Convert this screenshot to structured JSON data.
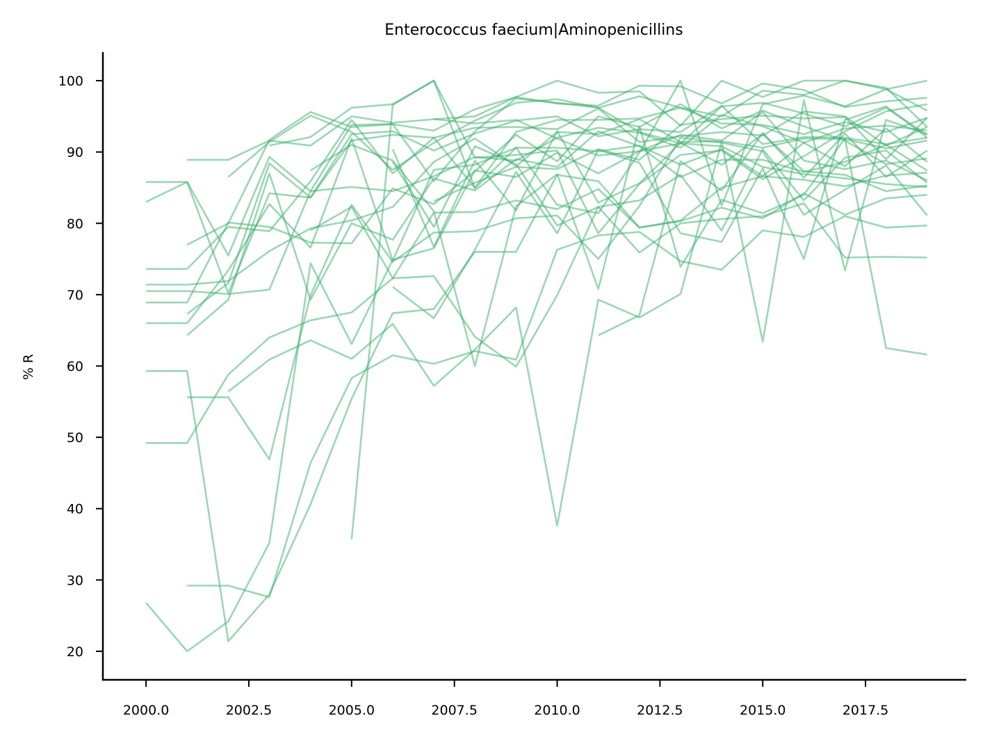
{
  "chart_data": {
    "type": "line",
    "title": "Enterococcus faecium|Aminopenicillins",
    "xlabel": "",
    "ylabel": "% R",
    "xlim": [
      1998.95,
      2019.95
    ],
    "ylim": [
      16,
      104
    ],
    "xticks": [
      2000.0,
      2002.5,
      2005.0,
      2007.5,
      2010.0,
      2012.5,
      2015.0,
      2017.5
    ],
    "xtick_labels": [
      "2000.0",
      "2002.5",
      "2005.0",
      "2007.5",
      "2010.0",
      "2012.5",
      "2015.0",
      "2017.5"
    ],
    "yticks": [
      20,
      30,
      40,
      50,
      60,
      70,
      80,
      90,
      100
    ],
    "ytick_labels": [
      "20",
      "30",
      "40",
      "50",
      "60",
      "70",
      "80",
      "90",
      "100"
    ],
    "grid": false,
    "legend": "none",
    "line_color": "#3aae6a",
    "series": [
      {
        "x": [
          2000,
          2001,
          2002,
          2003,
          2004,
          2005,
          2006,
          2007,
          2008,
          2009,
          2010,
          2011,
          2012,
          2013,
          2014,
          2015,
          2016,
          2017,
          2018,
          2019
        ],
        "values": [
          85.8,
          85.8,
          75.5,
          89.3,
          84.5,
          93.8,
          93.9,
          85.9,
          92.9,
          97.5,
          96.9,
          96.2,
          92.8,
          91.2,
          96.4,
          96.9,
          95.4,
          93.6,
          96.2,
          92.4
        ]
      },
      {
        "x": [
          2000,
          2001,
          2002,
          2003,
          2004,
          2005,
          2006,
          2007,
          2008,
          2009,
          2010,
          2011,
          2012,
          2013,
          2014,
          2015,
          2016,
          2017,
          2018,
          2019
        ],
        "values": [
          83.0,
          85.8,
          70.2,
          84.2,
          83.6,
          92.5,
          92.9,
          90.2,
          92.6,
          94.4,
          95.0,
          92.2,
          93.2,
          92.8,
          96.5,
          91.1,
          92.1,
          92.0,
          91.1,
          92.0
        ]
      },
      {
        "x": [
          2000,
          2001,
          2002,
          2003,
          2004,
          2005,
          2006,
          2007,
          2008,
          2009,
          2010,
          2011,
          2012,
          2013,
          2014,
          2015,
          2016,
          2017,
          2018,
          2019
        ],
        "values": [
          73.6,
          73.6,
          79.5,
          78.9,
          85.9,
          94.5,
          87.0,
          92.0,
          93.4,
          93.5,
          93.2,
          96.1,
          91.4,
          92.2,
          92.8,
          92.3,
          95.7,
          95.0,
          90.9,
          93.5
        ]
      },
      {
        "x": [
          2000,
          2001,
          2002,
          2003,
          2004,
          2005,
          2006,
          2007,
          2008,
          2009,
          2010,
          2011,
          2012,
          2013,
          2014,
          2015,
          2016,
          2017,
          2018,
          2019
        ],
        "values": [
          71.4,
          71.4,
          71.9,
          76.1,
          79.3,
          80.4,
          82.3,
          88.6,
          91.9,
          88.0,
          92.8,
          92.5,
          94.6,
          91.4,
          91.5,
          90.6,
          91.9,
          91.8,
          90.5,
          91.6
        ]
      },
      {
        "x": [
          2000,
          2001,
          2002,
          2003,
          2004,
          2005,
          2006,
          2007,
          2008,
          2009,
          2010,
          2011,
          2012,
          2013,
          2014,
          2015,
          2016,
          2017,
          2018,
          2019
        ],
        "values": [
          70.5,
          70.5,
          70.1,
          70.7,
          84.5,
          85.1,
          84.5,
          86.6,
          89.3,
          88.8,
          92.0,
          93.4,
          92.7,
          90.6,
          95.2,
          93.6,
          91.3,
          93.3,
          93.7,
          93.0
        ]
      },
      {
        "x": [
          2000,
          2001,
          2002,
          2003,
          2004,
          2005,
          2006,
          2007,
          2008,
          2009,
          2010,
          2011,
          2012,
          2013,
          2014,
          2015,
          2016,
          2017,
          2018,
          2019
        ],
        "values": [
          68.9,
          68.9,
          80.1,
          79.5,
          77.3,
          77.2,
          84.9,
          82.7,
          87.3,
          92.4,
          88.7,
          95.0,
          93.5,
          96.7,
          93.3,
          95.8,
          93.6,
          91.6,
          88.3,
          89.1
        ]
      },
      {
        "x": [
          2000,
          2001,
          2002,
          2003,
          2004,
          2005,
          2006,
          2007,
          2008,
          2009,
          2010,
          2011,
          2012,
          2013,
          2014,
          2015,
          2016,
          2017,
          2018,
          2019
        ],
        "values": [
          66.0,
          66.0,
          73.4,
          82.7,
          76.6,
          91.9,
          74.8,
          87.5,
          88.2,
          90.6,
          90.6,
          90.1,
          90.9,
          88.2,
          90.4,
          86.6,
          91.3,
          88.0,
          93.3,
          88.6
        ]
      },
      {
        "x": [
          2000,
          2001,
          2002,
          2003,
          2004,
          2005,
          2006,
          2007,
          2008,
          2009,
          2010,
          2011,
          2012,
          2013,
          2014,
          2015,
          2016,
          2017,
          2018,
          2019
        ],
        "values": [
          59.3,
          59.3,
          21.4,
          28.0,
          40.6,
          55.4,
          67.4,
          68.0,
          76.0,
          76.0,
          86.8,
          85.9,
          79.4,
          80.3,
          82.2,
          80.7,
          84.2,
          81.2,
          83.5,
          84.0
        ]
      },
      {
        "x": [
          2000,
          2001,
          2002,
          2003,
          2004,
          2005,
          2006,
          2007,
          2008,
          2009,
          2010,
          2011,
          2012,
          2013,
          2014,
          2015,
          2016,
          2017,
          2018,
          2019
        ],
        "values": [
          49.2,
          49.2,
          58.8,
          64.0,
          66.4,
          67.5,
          72.3,
          81.5,
          81.6,
          83.2,
          82.0,
          84.8,
          79.4,
          80.4,
          85.0,
          86.6,
          86.1,
          85.2,
          86.7,
          87.1
        ]
      },
      {
        "x": [
          2000,
          2001,
          2002,
          2003,
          2004,
          2005,
          2006,
          2007,
          2008,
          2009,
          2010,
          2011,
          2012,
          2013,
          2014,
          2015,
          2016,
          2017,
          2018,
          2019
        ],
        "values": [
          26.8,
          20.0,
          24.2,
          35.2,
          74.4,
          63.1,
          74.9,
          76.5,
          87.4,
          86.5,
          89.9,
          87.0,
          90.1,
          91.2,
          90.8,
          87.9,
          86.9,
          86.3,
          85.5,
          85.1
        ]
      },
      {
        "x": [
          2001,
          2002,
          2003,
          2004,
          2005,
          2006,
          2007,
          2008,
          2009,
          2010,
          2011,
          2012,
          2013,
          2014,
          2015,
          2016,
          2017,
          2018,
          2019
        ],
        "values": [
          88.9,
          88.9,
          91.6,
          90.9,
          95.0,
          94.1,
          94.6,
          95.0,
          97.7,
          96.8,
          96.5,
          99.3,
          99.2,
          96.8,
          99.6,
          98.7,
          96.3,
          97.1,
          97.6
        ]
      },
      {
        "x": [
          2001,
          2002,
          2003,
          2004,
          2005,
          2006,
          2007,
          2008,
          2009,
          2010,
          2011,
          2012,
          2013,
          2014,
          2015,
          2016,
          2017,
          2018,
          2019
        ],
        "values": [
          77.0,
          80.0,
          91.7,
          95.6,
          93.5,
          93.9,
          93.0,
          96.0,
          97.7,
          100.0,
          98.3,
          98.5,
          93.7,
          100.0,
          97.7,
          100.0,
          100.0,
          99.0,
          93.5
        ]
      },
      {
        "x": [
          2001,
          2002,
          2003,
          2004,
          2005,
          2006,
          2007,
          2008,
          2009,
          2010,
          2011,
          2012,
          2013,
          2014,
          2015,
          2016,
          2017,
          2018,
          2019
        ],
        "values": [
          67.3,
          71.6,
          88.4,
          83.6,
          91.6,
          92.4,
          92.0,
          85.0,
          92.8,
          94.5,
          94.5,
          94.7,
          96.2,
          94.0,
          93.8,
          92.5,
          94.2,
          92.8,
          94.8
        ]
      },
      {
        "x": [
          2001,
          2002,
          2003,
          2004,
          2005,
          2006,
          2007,
          2008,
          2009,
          2010,
          2011,
          2012,
          2013,
          2014,
          2015,
          2016,
          2017,
          2018,
          2019
        ],
        "values": [
          64.3,
          69.3,
          87.0,
          69.3,
          80.0,
          77.7,
          86.3,
          84.6,
          89.0,
          87.9,
          92.9,
          90.8,
          86.5,
          88.9,
          88.9,
          87.2,
          88.6,
          91.0,
          87.4
        ]
      },
      {
        "x": [
          2001,
          2002,
          2003,
          2004,
          2005,
          2006,
          2007,
          2008,
          2009,
          2010,
          2011,
          2012,
          2013,
          2014,
          2015,
          2016,
          2017,
          2018,
          2019
        ],
        "values": [
          55.6,
          55.6,
          46.9,
          69.9,
          82.6,
          74.6,
          78.7,
          78.9,
          80.7,
          81.1,
          75.0,
          82.4,
          92.0,
          91.3,
          90.1,
          81.2,
          84.7,
          88.1,
          81.1
        ]
      },
      {
        "x": [
          2001,
          2002,
          2003,
          2004,
          2005,
          2006,
          2007,
          2008,
          2009,
          2010,
          2011,
          2012,
          2013,
          2014,
          2015,
          2016,
          2017,
          2018,
          2019
        ],
        "values": [
          29.2,
          29.2,
          27.6,
          46.4,
          58.3,
          61.5,
          60.3,
          62.1,
          60.9,
          76.3,
          78.3,
          78.8,
          74.7,
          73.5,
          79.0,
          78.1,
          81.0,
          79.4,
          79.7
        ]
      },
      {
        "x": [
          2002,
          2003,
          2004,
          2005,
          2006,
          2007,
          2008,
          2009,
          2010,
          2011,
          2012,
          2013,
          2014,
          2015,
          2016,
          2017,
          2018,
          2019
        ],
        "values": [
          86.5,
          91.4,
          95.1,
          92.8,
          87.5,
          91.3,
          94.4,
          96.9,
          97.4,
          96.2,
          97.8,
          96.2,
          95.0,
          98.6,
          98.0,
          100.0,
          98.8,
          95.8
        ]
      },
      {
        "x": [
          2002,
          2003,
          2004,
          2005,
          2006,
          2007,
          2008,
          2009,
          2010,
          2011,
          2012,
          2013,
          2014,
          2015,
          2016,
          2017,
          2018,
          2019
        ],
        "values": [
          56.4,
          60.9,
          63.6,
          61.0,
          65.9,
          57.2,
          62.3,
          68.2,
          37.6,
          69.3,
          66.8,
          70.1,
          91.4,
          63.4,
          97.3,
          73.4,
          94.5,
          92.5
        ]
      },
      {
        "x": [
          2003,
          2004,
          2005,
          2006,
          2007,
          2008,
          2009,
          2010,
          2011,
          2012,
          2013,
          2014,
          2015,
          2016,
          2017,
          2018,
          2019
        ],
        "values": [
          90.9,
          92.1,
          96.2,
          96.7,
          100.0,
          84.9,
          90.6,
          82.6,
          81.4,
          89.9,
          100.0,
          82.5,
          96.7,
          97.9,
          96.4,
          98.8,
          100.0
        ]
      },
      {
        "x": [
          2004,
          2005,
          2006,
          2007,
          2008,
          2009,
          2010,
          2011,
          2012,
          2013,
          2014,
          2015,
          2016,
          2017,
          2018,
          2019
        ],
        "values": [
          87.4,
          91.0,
          88.8,
          81.7,
          60.0,
          82.4,
          86.9,
          70.8,
          93.6,
          73.9,
          83.3,
          81.4,
          84.0,
          91.9,
          62.5,
          61.6
        ]
      },
      {
        "x": [
          2004,
          2005,
          2006,
          2007,
          2008,
          2009,
          2010,
          2011,
          2012,
          2013,
          2014,
          2015,
          2016,
          2017,
          2018,
          2019
        ],
        "values": [
          79.0,
          82.3,
          72.3,
          72.6,
          64.1,
          59.9,
          69.9,
          82.3,
          75.9,
          80.0,
          80.6,
          81.0,
          82.8,
          75.2,
          75.3,
          75.2
        ]
      },
      {
        "x": [
          2005,
          2006,
          2007,
          2008,
          2009,
          2010,
          2011,
          2012,
          2013,
          2014,
          2015,
          2016,
          2017,
          2018,
          2019
        ],
        "values": [
          35.7,
          96.6,
          100.0,
          89.2,
          89.6,
          90.2,
          78.6,
          85.5,
          89.6,
          90.2,
          86.2,
          89.4,
          92.9,
          95.7,
          96.7
        ]
      },
      {
        "x": [
          2006,
          2007,
          2008,
          2009,
          2010,
          2011,
          2012,
          2013,
          2014,
          2015,
          2016,
          2017,
          2018,
          2019
        ],
        "values": [
          88.6,
          79.5,
          90.8,
          88.3,
          79.7,
          82.3,
          83.2,
          86.8,
          79.0,
          90.4,
          83.2,
          89.2,
          90.2,
          85.7
        ]
      },
      {
        "x": [
          2006,
          2007,
          2008,
          2009,
          2010,
          2011,
          2012,
          2013,
          2014,
          2015,
          2016,
          2017,
          2018,
          2019
        ],
        "values": [
          71.1,
          66.7,
          76.3,
          87.2,
          78.6,
          90.3,
          88.5,
          78.6,
          77.4,
          87.7,
          75.0,
          94.5,
          96.4,
          92.0
        ]
      },
      {
        "x": [
          2006,
          2007,
          2008,
          2009,
          2010,
          2011,
          2012,
          2013,
          2014,
          2015,
          2016,
          2017,
          2018,
          2019
        ],
        "values": [
          90.4,
          76.7,
          88.8,
          81.8,
          92.9,
          82.9,
          85.6,
          91.3,
          88.2,
          92.5,
          87.3,
          86.8,
          84.5,
          85.3
        ]
      },
      {
        "x": [
          2007,
          2008,
          2009,
          2010,
          2011,
          2012,
          2013,
          2014,
          2015,
          2016,
          2017,
          2018,
          2019
        ],
        "values": [
          94.6,
          94.0,
          94.5,
          91.9,
          89.5,
          90.1,
          92.4,
          91.6,
          95.6,
          88.8,
          87.6,
          88.8,
          86.0
        ]
      },
      {
        "x": [
          2007,
          2008,
          2009,
          2010,
          2011,
          2012,
          2013,
          2014,
          2015,
          2016,
          2017,
          2018,
          2019
        ],
        "values": [
          83.1,
          85.7,
          87.9,
          87.6,
          90.4,
          88.9,
          93.8,
          94.6,
          95.1,
          94.7,
          94.9,
          89.0,
          94.8
        ]
      },
      {
        "x": [
          2011,
          2012,
          2013,
          2014,
          2015,
          2016,
          2017,
          2018,
          2019
        ],
        "values": [
          64.3,
          67.1,
          88.7,
          84.6,
          92.7,
          86.4,
          92.6,
          86.5,
          90.2
        ]
      }
    ]
  }
}
